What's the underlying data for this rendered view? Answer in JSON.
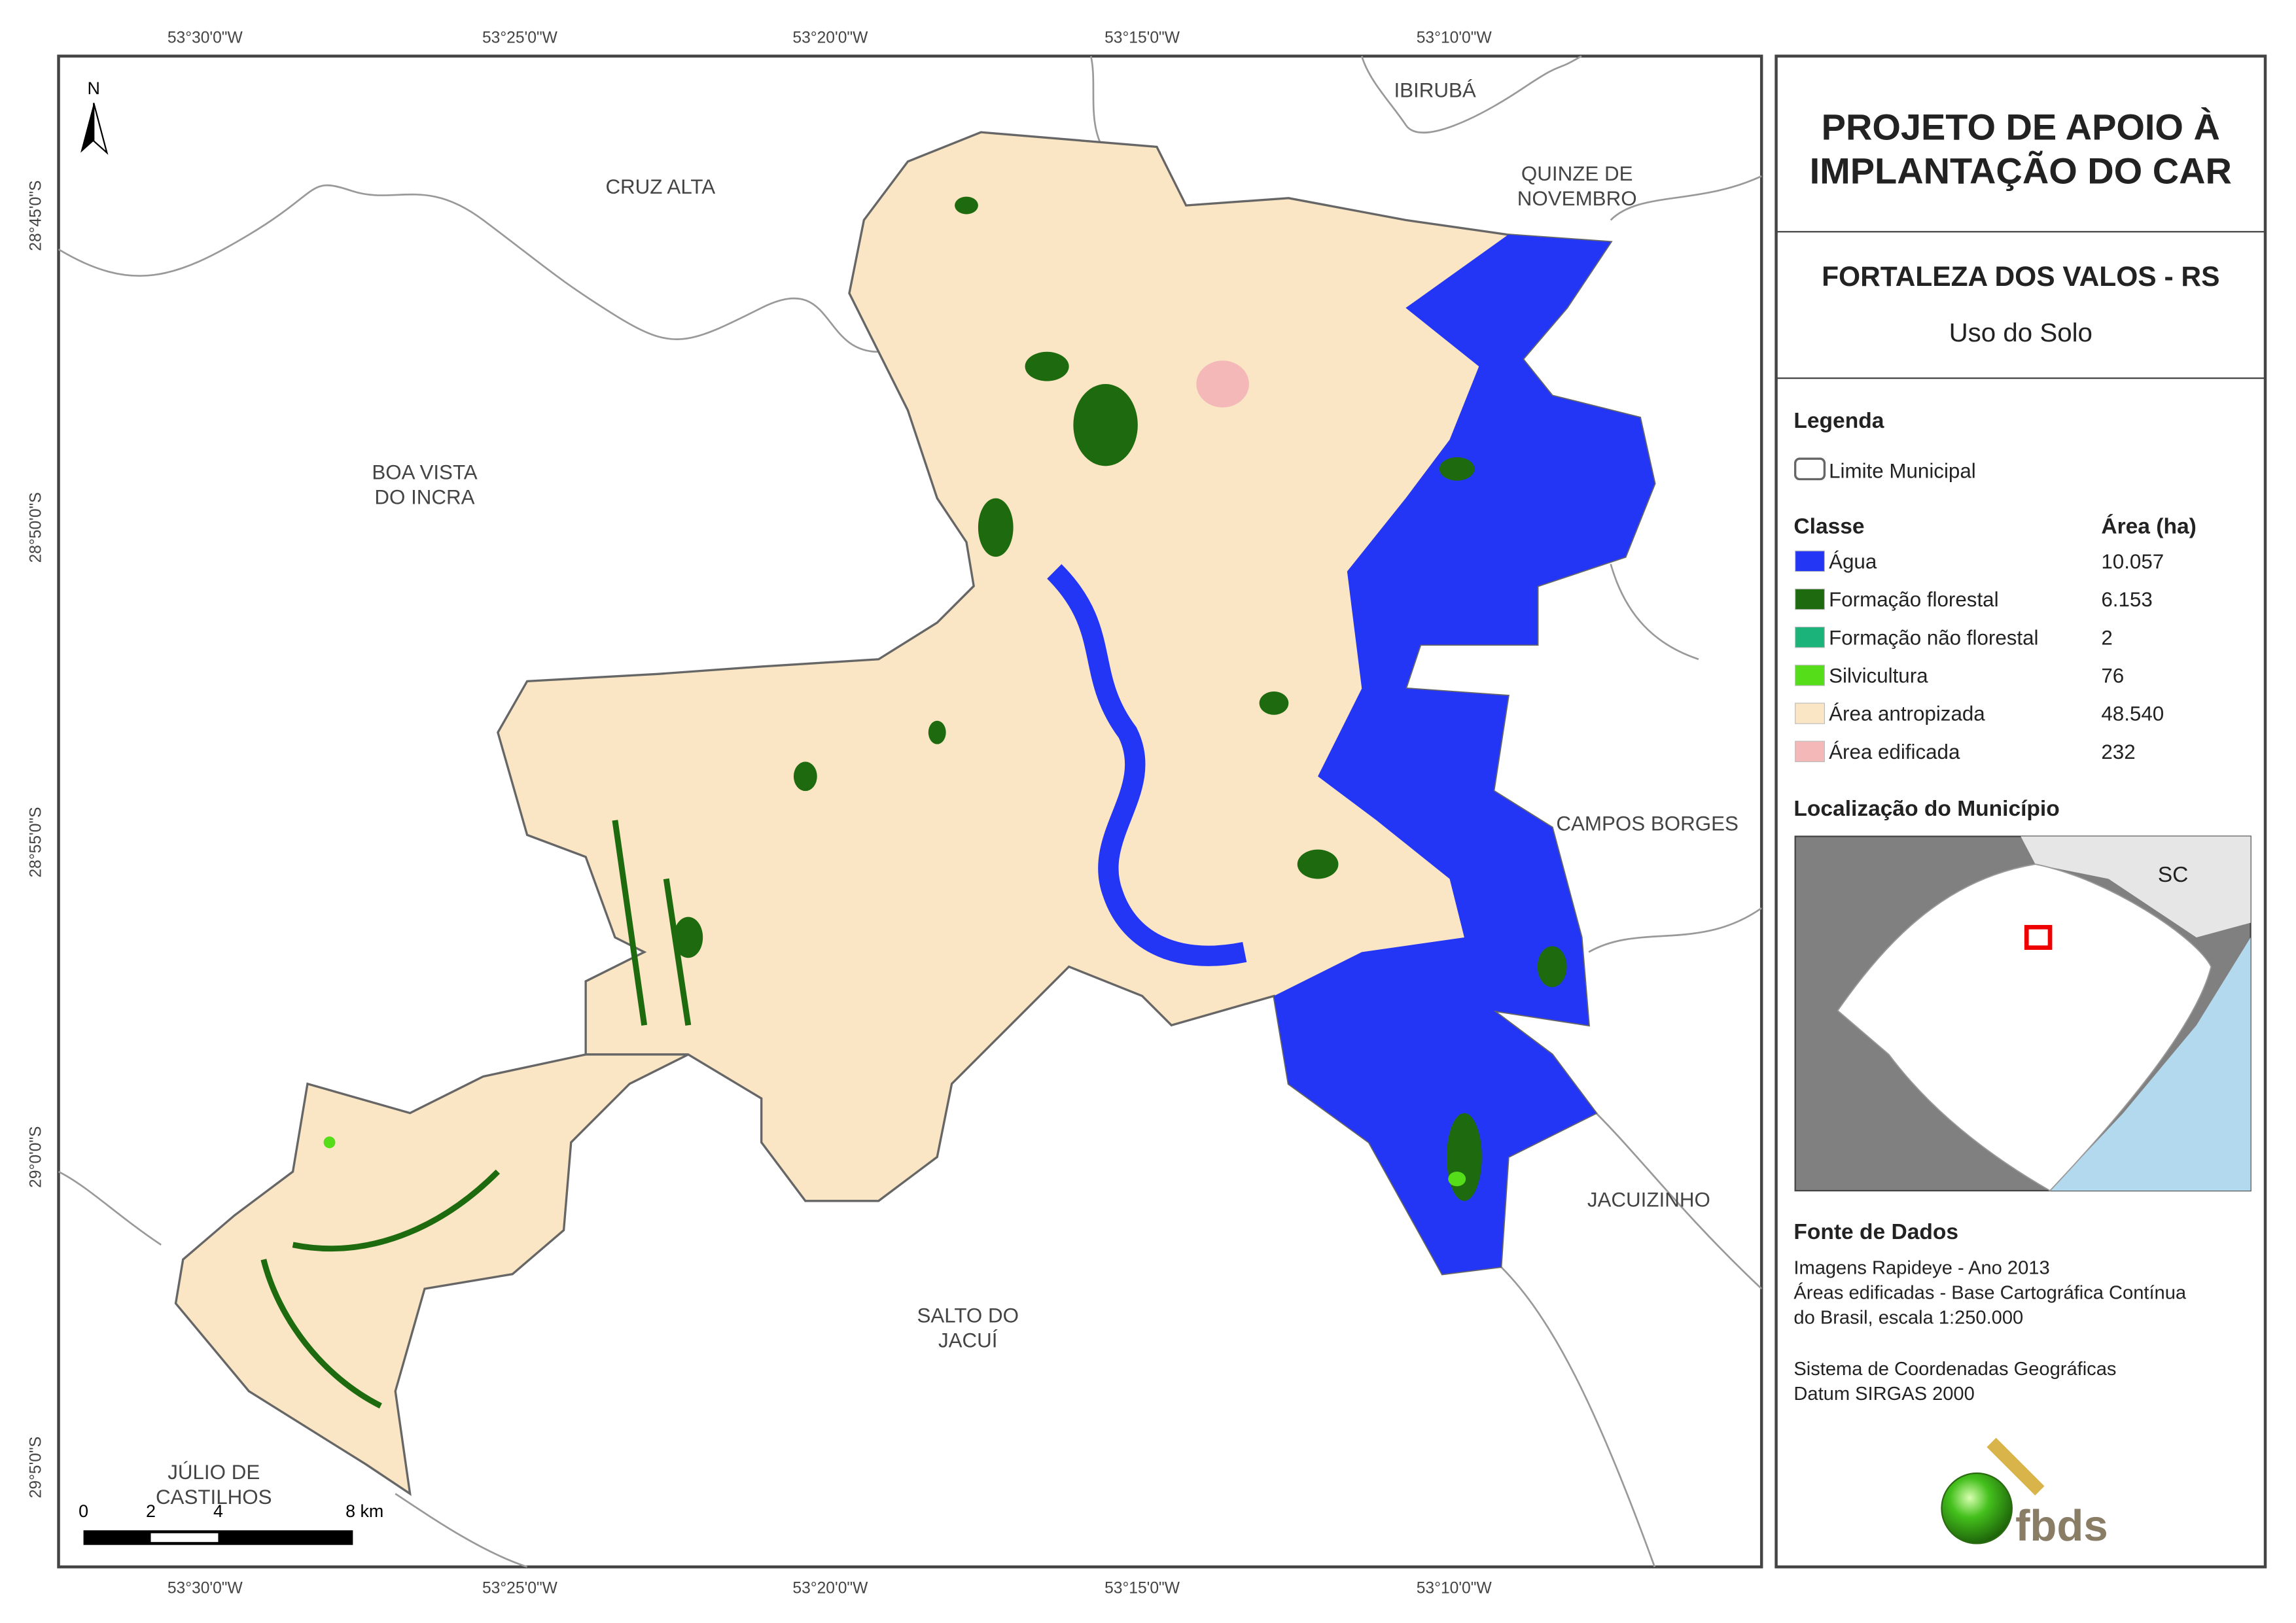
{
  "map": {
    "north": "N",
    "top_labels": [
      "53°30'0\"W",
      "53°25'0\"W",
      "53°20'0\"W",
      "53°15'0\"W",
      "53°10'0\"W"
    ],
    "bottom_labels": [
      "53°30'0\"W",
      "53°25'0\"W",
      "53°20'0\"W",
      "53°15'0\"W",
      "53°10'0\"W"
    ],
    "left_labels": [
      "28°45'0\"S",
      "28°50'0\"S",
      "28°55'0\"S",
      "29°0'0\"S",
      "29°5'0\"S"
    ],
    "places": [
      {
        "lines": [
          "IBIRUBÁ"
        ]
      },
      {
        "lines": [
          "CRUZ ALTA"
        ]
      },
      {
        "lines": [
          "QUINZE DE",
          "NOVEMBRO"
        ]
      },
      {
        "lines": [
          "BOA VISTA",
          "DO INCRA"
        ]
      },
      {
        "lines": [
          "CAMPOS BORGES"
        ]
      },
      {
        "lines": [
          "JACUIZINHO"
        ]
      },
      {
        "lines": [
          "SALTO DO",
          "JACUÍ"
        ]
      },
      {
        "lines": [
          "JÚLIO DE",
          "CASTILHOS"
        ]
      }
    ],
    "scale_bar": [
      "0",
      "2",
      "4",
      "8 km"
    ]
  },
  "panel": {
    "title": [
      "PROJETO DE APOIO À",
      "IMPLANTAÇÃO DO CAR"
    ],
    "municipality": "FORTALEZA DOS VALOS - RS",
    "subtitle": "Uso do Solo",
    "legend_title": "Legenda",
    "boundary": "Limite Municipal",
    "table": {
      "header": [
        "Classe",
        "Área (ha)"
      ],
      "rows": [
        {
          "name": "Água",
          "area": "10.057",
          "color": "#2436f5"
        },
        {
          "name": "Formação florestal",
          "area": "6.153",
          "color": "#1e6b0f"
        },
        {
          "name": "Formação não florestal",
          "area": "2",
          "color": "#1bb37a"
        },
        {
          "name": "Silvicultura",
          "area": "76",
          "color": "#55dd1a"
        },
        {
          "name": "Área antropizada",
          "area": "48.540",
          "color": "#fae6c4"
        },
        {
          "name": "Área edificada",
          "area": "232",
          "color": "#f5b8b8"
        }
      ]
    },
    "location_title": "Localização do Município",
    "inset_label": "SC",
    "sources_title": "Fonte de Dados",
    "sources": [
      "Imagens Rapideye - Ano 2013",
      "Áreas edificadas - Base Cartográfica Contínua",
      "do Brasil, escala 1:250.000",
      "Sistema de Coordenadas Geográficas",
      "Datum SIRGAS 2000"
    ],
    "logo": "fbds"
  }
}
